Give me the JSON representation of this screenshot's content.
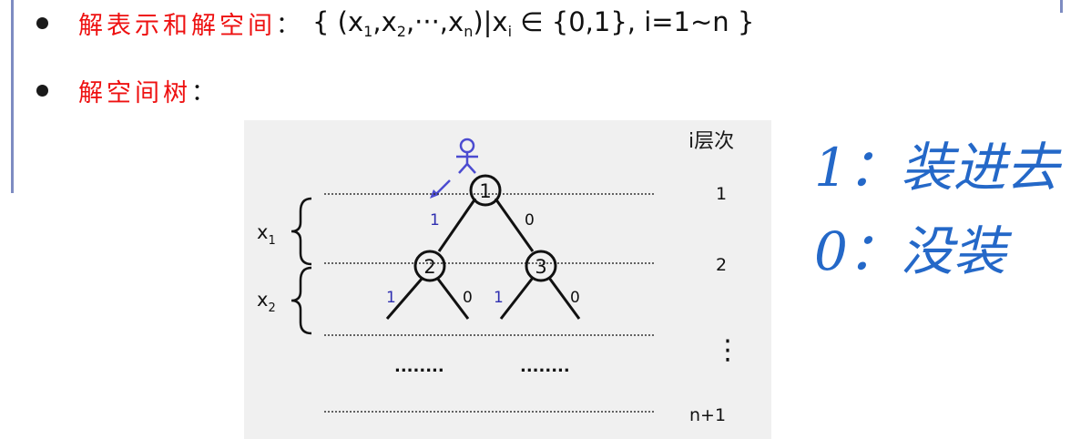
{
  "bullets": [
    {
      "term": "解表示和解空间",
      "colon": "：",
      "set_prefix": "{ (x",
      "sub1": "1",
      "sep1": ",x",
      "sub2": "2",
      "sep2": ",···,x",
      "subn": "n",
      "mid": ")|x",
      "subi": "i",
      "suffix": " ∈ {0,1},  i=1~n }"
    },
    {
      "term": "解空间树",
      "colon": "："
    }
  ],
  "tree": {
    "level_header": "i层次",
    "levels": [
      "1",
      "2",
      "⋮",
      "n+1"
    ],
    "x1_label": "x",
    "x1_sub": "1",
    "x2_label": "x",
    "x2_sub": "2",
    "nodes": [
      "1",
      "2",
      "3"
    ],
    "edge_labels": {
      "root_left": "1",
      "root_right": "0",
      "n2_left": "1",
      "n2_right": "0",
      "n3_left": "1",
      "n3_right": "0"
    },
    "dots_left": "........",
    "dots_right": "........"
  },
  "handwriting": {
    "line1": "1：装进去",
    "line2": "0：没装"
  },
  "colors": {
    "accent_red": "#ee1111",
    "rule_blue": "#7e8cc2",
    "walker_blue": "#4b4bd0",
    "ink": "#1a1a1a"
  }
}
